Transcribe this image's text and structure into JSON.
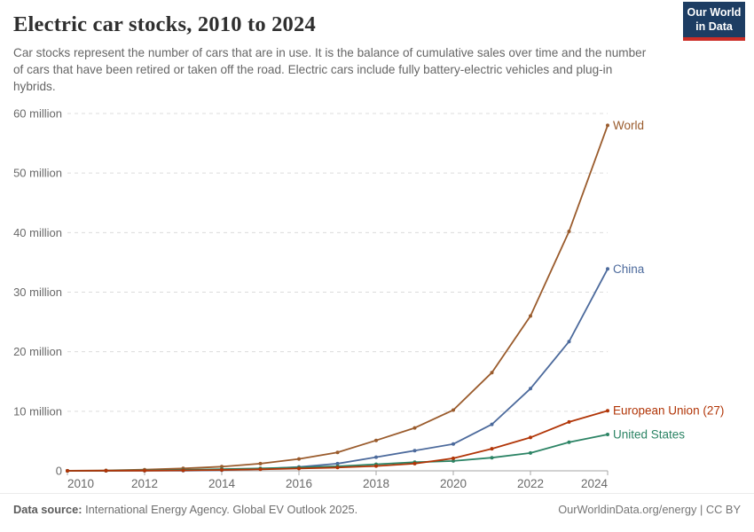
{
  "header": {
    "title": "Electric car stocks, 2010 to 2024",
    "subtitle": "Car stocks represent the number of cars that are in use. It is the balance of cumulative sales over time and the number of cars that have been retired or taken off the road. Electric cars include fully battery-electric vehicles and plug-in hybrids.",
    "logo": {
      "line1": "Our World",
      "line2": "in Data",
      "bg_color": "#1d3d63",
      "bar_color": "#cb2d26"
    }
  },
  "footer": {
    "source_label": "Data source:",
    "source_text": " International Energy Agency. Global EV Outlook 2025.",
    "credit": "OurWorldinData.org/energy | CC BY"
  },
  "chart_data": {
    "type": "line",
    "title": "Electric car stocks, 2010 to 2024",
    "unit": "million cars",
    "x": [
      2010,
      2011,
      2012,
      2013,
      2014,
      2015,
      2016,
      2017,
      2018,
      2019,
      2020,
      2021,
      2022,
      2023,
      2024
    ],
    "series": [
      {
        "name": "World",
        "color": "#9a5b2c",
        "values": [
          0.02,
          0.07,
          0.19,
          0.4,
          0.7,
          1.2,
          2.0,
          3.1,
          5.1,
          7.2,
          10.2,
          16.5,
          26.0,
          40.2,
          58.0
        ]
      },
      {
        "name": "China",
        "color": "#4c6a9c",
        "values": [
          0.001,
          0.007,
          0.017,
          0.03,
          0.1,
          0.31,
          0.65,
          1.2,
          2.3,
          3.4,
          4.5,
          7.8,
          13.8,
          21.7,
          33.9
        ]
      },
      {
        "name": "United States",
        "color": "#2c8465",
        "values": [
          0.004,
          0.02,
          0.07,
          0.17,
          0.29,
          0.4,
          0.56,
          0.76,
          1.1,
          1.45,
          1.65,
          2.2,
          3.0,
          4.8,
          6.1
        ]
      },
      {
        "name": "European Union (27)",
        "color": "#b13507",
        "values": [
          0.002,
          0.012,
          0.033,
          0.07,
          0.15,
          0.25,
          0.38,
          0.55,
          0.8,
          1.2,
          2.1,
          3.7,
          5.6,
          8.2,
          10.1
        ]
      }
    ],
    "label_order_note": "series drawn in listed order; European Union (27) label sits above United States label at right edge",
    "ylim": [
      0,
      60
    ],
    "yticks": [
      {
        "value": 0,
        "label": "0"
      },
      {
        "value": 10,
        "label": "10 million"
      },
      {
        "value": 20,
        "label": "20 million"
      },
      {
        "value": 30,
        "label": "30 million"
      },
      {
        "value": 40,
        "label": "40 million"
      },
      {
        "value": 50,
        "label": "50 million"
      },
      {
        "value": 60,
        "label": "60 million"
      }
    ],
    "xticks": [
      2010,
      2012,
      2014,
      2016,
      2018,
      2020,
      2022,
      2024
    ],
    "grid": "horizontal-dashed",
    "legend_position": "end-of-line-labels",
    "grid_color": "#dcdcdc",
    "axis_color": "#a5a5a5",
    "tick_label_color": "#696969"
  }
}
